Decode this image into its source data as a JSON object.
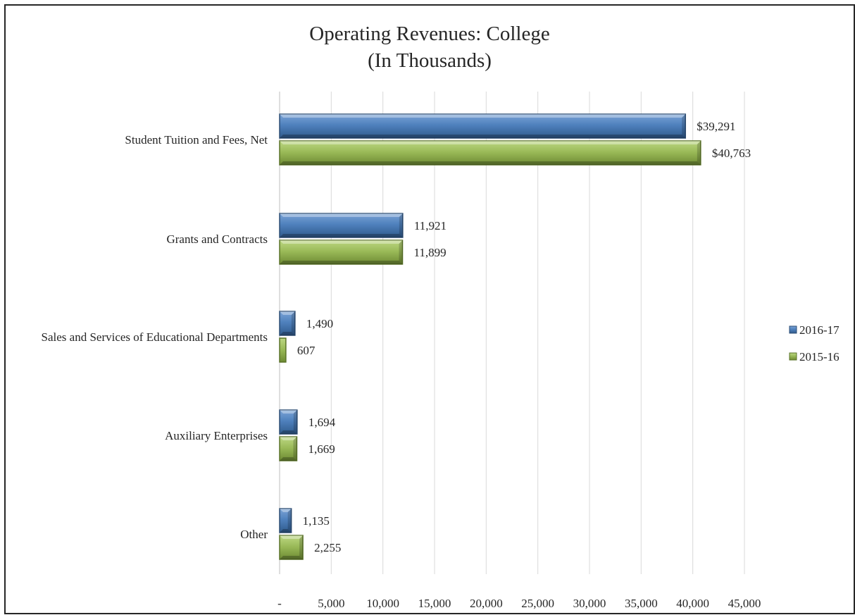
{
  "chart_data": {
    "type": "bar",
    "orientation": "horizontal",
    "title_lines": [
      "Operating Revenues: College",
      "(In Thousands)"
    ],
    "xlabel": "",
    "ylabel": "",
    "xlim": [
      0,
      45000
    ],
    "x_ticks": [
      0,
      5000,
      10000,
      15000,
      20000,
      25000,
      30000,
      35000,
      40000,
      45000
    ],
    "x_tick_labels": [
      "-",
      "5,000",
      "10,000",
      "15,000",
      "20,000",
      "25,000",
      "30,000",
      "35,000",
      "40,000",
      "45,000"
    ],
    "grid": "vertical",
    "legend_position": "right",
    "categories": [
      "Student Tuition and Fees, Net",
      "Grants and Contracts",
      "Sales and Services of Educational Departments",
      "Auxiliary Enterprises",
      "Other"
    ],
    "series": [
      {
        "name": "2016-17",
        "color": "#4F81BD",
        "values": [
          39291,
          11921,
          1490,
          1694,
          1135
        ],
        "labels": [
          "$39,291",
          "11,921",
          "1,490",
          "1,694",
          "1,135"
        ]
      },
      {
        "name": "2015-16",
        "color": "#9BBB59",
        "values": [
          40763,
          11899,
          607,
          1669,
          2255
        ],
        "labels": [
          "$40,763",
          "11,899",
          "607",
          "1,669",
          "2,255"
        ]
      }
    ]
  }
}
